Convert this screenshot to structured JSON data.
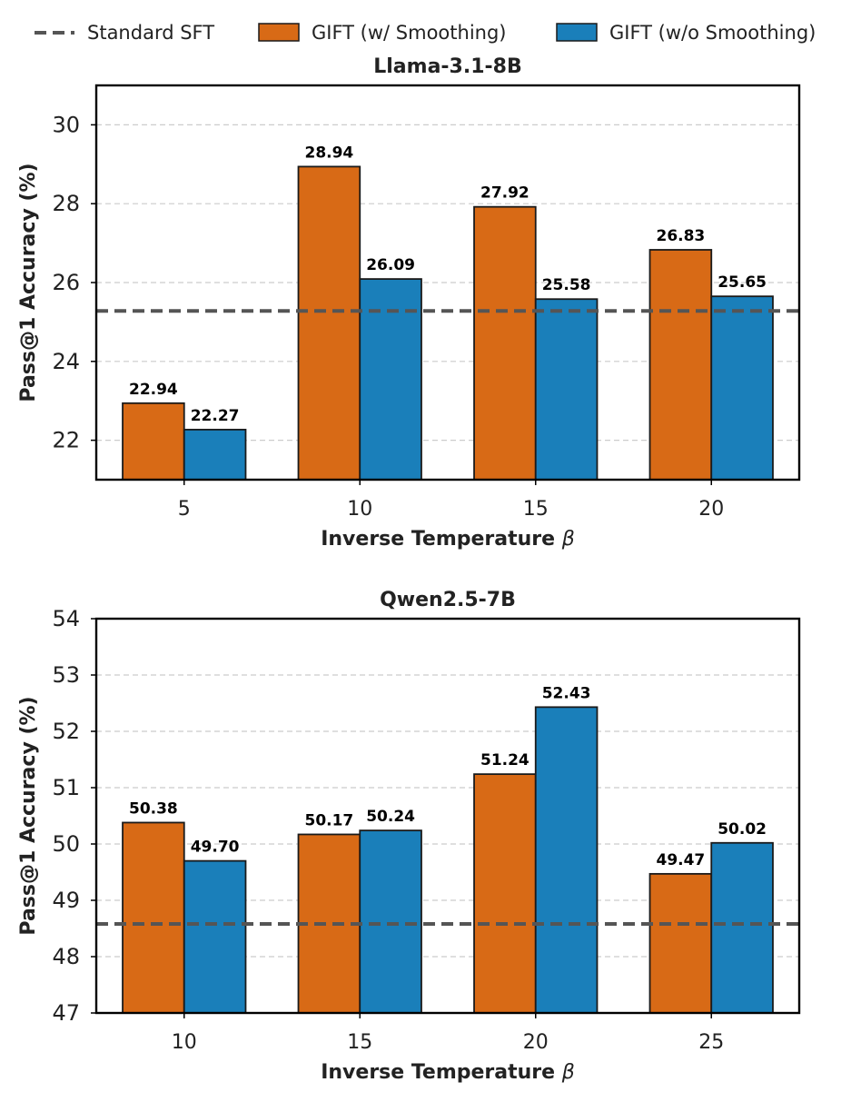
{
  "legend": {
    "baseline_label": "Standard SFT",
    "series_labels": [
      "GIFT (w/ Smoothing)",
      "GIFT (w/o Smoothing)"
    ]
  },
  "colors": {
    "with_smoothing": "#D86A16",
    "without_smoothing": "#1A7FBA",
    "baseline": "#555555",
    "grid": "#cccccc"
  },
  "chart_data": [
    {
      "type": "bar",
      "title": "Llama-3.1-8B",
      "xlabel": "Inverse Temperature",
      "xlabel_symbol": "β",
      "ylabel": "Pass@1 Accuracy (%)",
      "categories": [
        "5",
        "10",
        "15",
        "20"
      ],
      "ylim": [
        21,
        31
      ],
      "yticks": [
        22,
        24,
        26,
        28,
        30
      ],
      "baseline": 25.28,
      "series": [
        {
          "name": "GIFT (w/ Smoothing)",
          "values": [
            22.94,
            28.94,
            27.92,
            26.83
          ],
          "labels": [
            "22.94",
            "28.94",
            "27.92",
            "26.83"
          ]
        },
        {
          "name": "GIFT (w/o Smoothing)",
          "values": [
            22.27,
            26.09,
            25.58,
            25.65
          ],
          "labels": [
            "22.27",
            "26.09",
            "25.58",
            "25.65"
          ]
        }
      ]
    },
    {
      "type": "bar",
      "title": "Qwen2.5-7B",
      "xlabel": "Inverse Temperature",
      "xlabel_symbol": "β",
      "ylabel": "Pass@1 Accuracy (%)",
      "categories": [
        "10",
        "15",
        "20",
        "25"
      ],
      "ylim": [
        47,
        54
      ],
      "yticks": [
        47,
        48,
        49,
        50,
        51,
        52,
        53,
        54
      ],
      "baseline": 48.58,
      "series": [
        {
          "name": "GIFT (w/ Smoothing)",
          "values": [
            50.38,
            50.17,
            51.24,
            49.47
          ],
          "labels": [
            "50.38",
            "50.17",
            "51.24",
            "49.47"
          ]
        },
        {
          "name": "GIFT (w/o Smoothing)",
          "values": [
            49.7,
            50.24,
            52.43,
            50.02
          ],
          "labels": [
            "49.70",
            "50.24",
            "52.43",
            "50.02"
          ]
        }
      ]
    }
  ]
}
